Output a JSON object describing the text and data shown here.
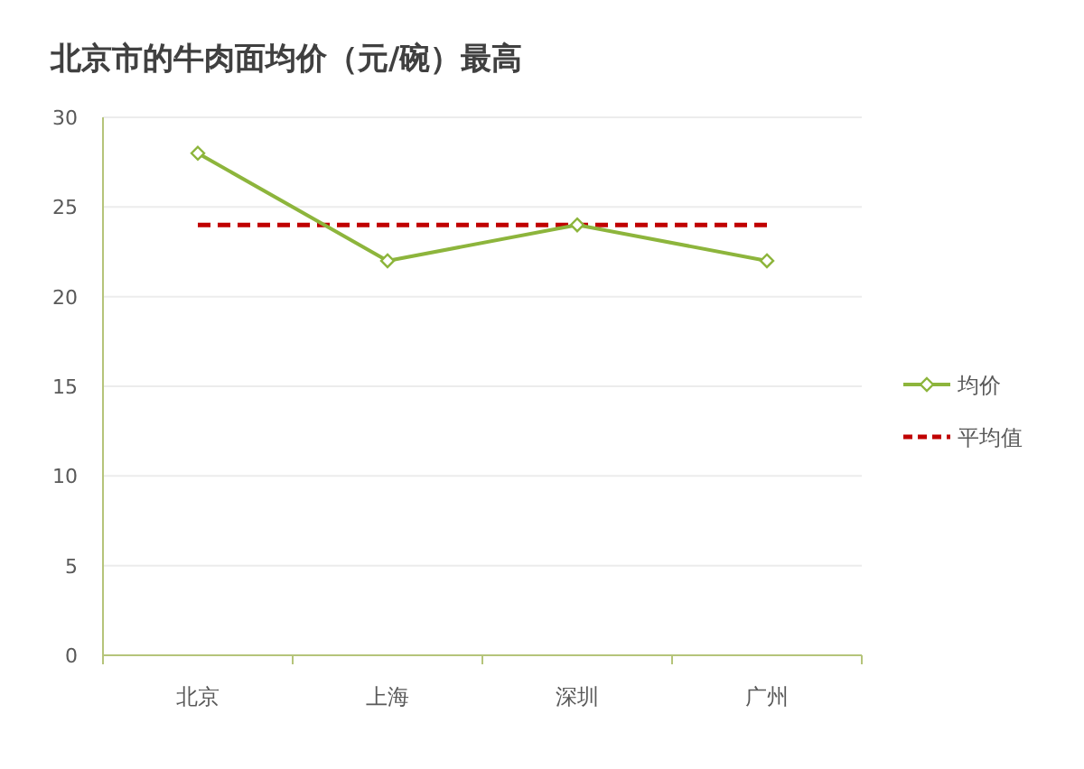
{
  "chart_data": {
    "type": "line",
    "title": "北京市的牛肉面均价（元/碗）最高",
    "categories": [
      "北京",
      "上海",
      "深圳",
      "广州"
    ],
    "series": [
      {
        "name": "均价",
        "color": "#8db53c",
        "values": [
          28,
          22,
          24,
          22
        ],
        "marker": "diamond",
        "line_style": "solid"
      },
      {
        "name": "平均值",
        "color": "#c00000",
        "values": [
          24,
          24,
          24,
          24
        ],
        "marker": "none",
        "line_style": "dashed"
      }
    ],
    "ylim": [
      0,
      30
    ],
    "yticks": [
      0,
      5,
      10,
      15,
      20,
      25,
      30
    ],
    "grid": "y",
    "legend": "right"
  }
}
